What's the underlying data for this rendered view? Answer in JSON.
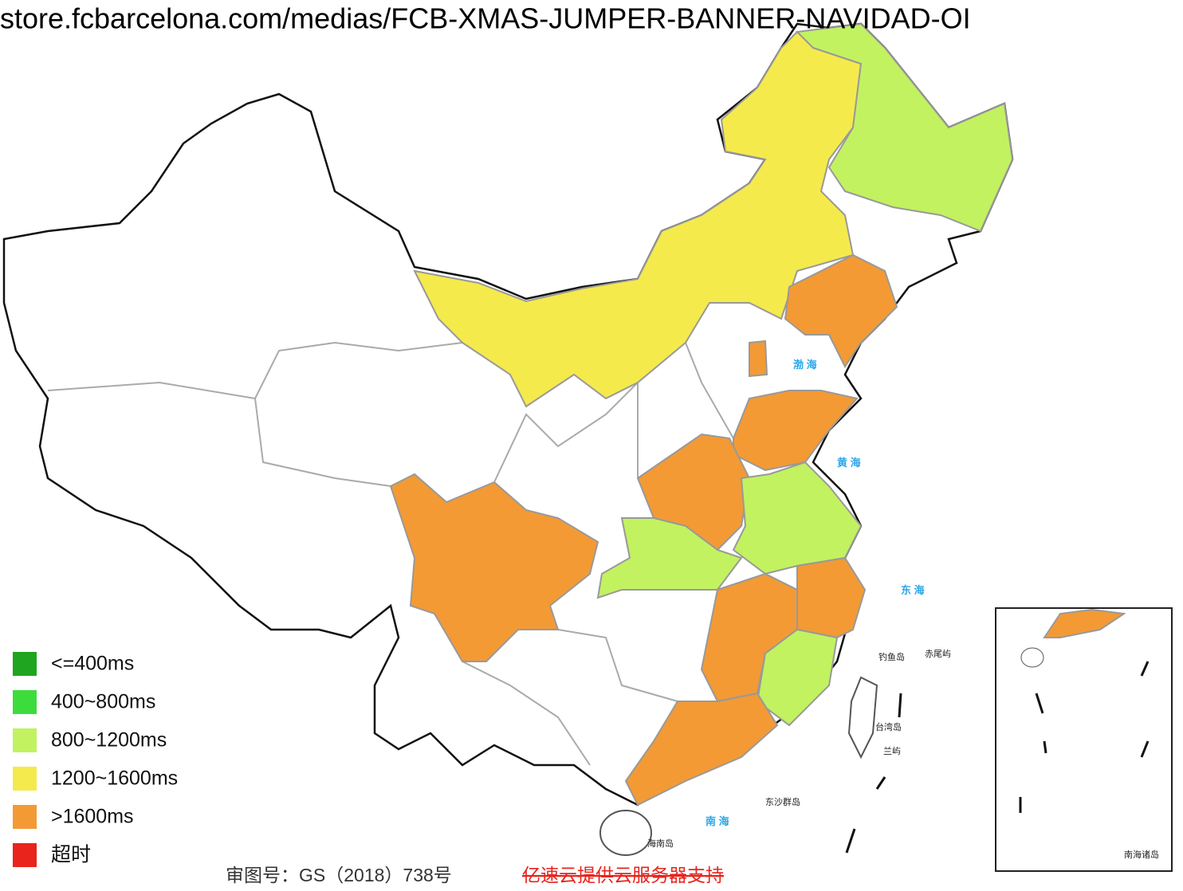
{
  "header": {
    "url": "store.fcbarcelona.com/medias/FCB-XMAS-JUMPER-BANNER-NAVIDAD-OI"
  },
  "legend": {
    "items": [
      {
        "label": "<=400ms",
        "color": "#1fa51f"
      },
      {
        "label": "400~800ms",
        "color": "#3ddc3d"
      },
      {
        "label": "800~1200ms",
        "color": "#c2f260"
      },
      {
        "label": "1200~1600ms",
        "color": "#f5ea4c"
      },
      {
        "label": ">1600ms",
        "color": "#f39a35"
      },
      {
        "label": "超时",
        "color": "#e8241d"
      }
    ]
  },
  "map_labels": [
    "渤 海",
    "黄 海",
    "东 海",
    "南 海",
    "钓鱼岛",
    "赤尾屿",
    "台湾岛",
    "兰屿",
    "东沙群岛",
    "海南岛",
    "南海诸岛"
  ],
  "footer": {
    "approval": "审图号：GS（2018）738号",
    "sponsor": "亿速云提供云服务器支持"
  }
}
